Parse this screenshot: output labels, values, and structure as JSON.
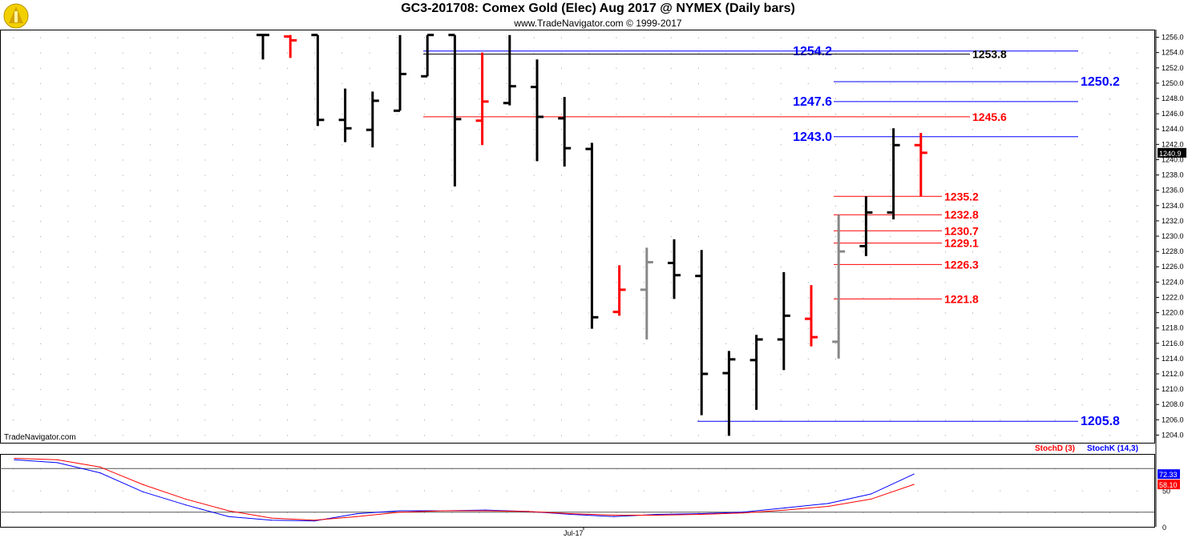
{
  "header": {
    "title": "GC3-201708:  Comex Gold (Elec) Aug 2017 @ NYMEX  (Daily bars)",
    "subtitle": "www.TradeNavigator.com © 1999-2017",
    "watermark": "TradeNavigator.com",
    "logo_icon": "trade-navigator-logo-icon"
  },
  "colors": {
    "bar_default": "#000000",
    "bar_down": "#ff0000",
    "bar_neutral": "#888888",
    "level_blue": "#0000ff",
    "level_red": "#ff0000",
    "stoch_k": "#0000ff",
    "stoch_d": "#ff0000"
  },
  "chart_data": [
    {
      "type": "ohlc",
      "y_ticks": [
        "1204.0",
        "1206.0",
        "1208.0",
        "1210.0",
        "1212.0",
        "1214.0",
        "1216.0",
        "1218.0",
        "1220.0",
        "1222.0",
        "1224.0",
        "1226.0",
        "1228.0",
        "1230.0",
        "1232.0",
        "1234.0",
        "1236.0",
        "1238.0",
        "1240.0",
        "1242.0",
        "1244.0",
        "1246.0",
        "1248.0",
        "1250.0",
        "1252.0",
        "1254.0",
        "1256.0"
      ],
      "ylim": [
        1203.0,
        1257.0
      ],
      "last_price": "1240.9",
      "x_labels": [
        {
          "index": 22,
          "label": "Jul-17"
        }
      ],
      "bars": [
        {
          "o": 1256.3,
          "h": 1256.3,
          "l": 1253.1,
          "c": 1256.3,
          "color": "black"
        },
        {
          "o": 1256.1,
          "h": 1256.3,
          "l": 1253.3,
          "c": 1255.6,
          "color": "red"
        },
        {
          "o": 1256.3,
          "h": 1256.3,
          "l": 1244.4,
          "c": 1245.2,
          "color": "black"
        },
        {
          "o": 1245.2,
          "h": 1249.3,
          "l": 1242.3,
          "c": 1244.1,
          "color": "black"
        },
        {
          "o": 1243.9,
          "h": 1248.9,
          "l": 1241.6,
          "c": 1247.7,
          "color": "black"
        },
        {
          "o": 1246.4,
          "h": 1256.3,
          "l": 1246.4,
          "c": 1251.2,
          "color": "black"
        },
        {
          "o": 1250.9,
          "h": 1256.3,
          "l": 1250.9,
          "c": 1256.3,
          "color": "black"
        },
        {
          "o": 1256.3,
          "h": 1256.3,
          "l": 1236.5,
          "c": 1245.3,
          "color": "black"
        },
        {
          "o": 1245.1,
          "h": 1254.0,
          "l": 1241.9,
          "c": 1247.6,
          "color": "red"
        },
        {
          "o": 1247.4,
          "h": 1256.3,
          "l": 1247.1,
          "c": 1249.6,
          "color": "black"
        },
        {
          "o": 1249.5,
          "h": 1253.1,
          "l": 1239.8,
          "c": 1245.6,
          "color": "black"
        },
        {
          "o": 1245.4,
          "h": 1248.2,
          "l": 1239.1,
          "c": 1241.5,
          "color": "black"
        },
        {
          "o": 1241.4,
          "h": 1242.2,
          "l": 1217.9,
          "c": 1219.4,
          "color": "black"
        },
        {
          "o": 1220.1,
          "h": 1226.2,
          "l": 1219.6,
          "c": 1223.0,
          "color": "red"
        },
        {
          "o": 1223.0,
          "h": 1228.5,
          "l": 1216.5,
          "c": 1226.6,
          "color": "gray"
        },
        {
          "o": 1226.5,
          "h": 1229.6,
          "l": 1221.8,
          "c": 1224.9,
          "color": "black"
        },
        {
          "o": 1224.8,
          "h": 1228.2,
          "l": 1206.6,
          "c": 1212.0,
          "color": "black"
        },
        {
          "o": 1212.1,
          "h": 1215.0,
          "l": 1203.9,
          "c": 1213.9,
          "color": "black"
        },
        {
          "o": 1213.8,
          "h": 1217.1,
          "l": 1207.3,
          "c": 1216.5,
          "color": "black"
        },
        {
          "o": 1216.5,
          "h": 1225.3,
          "l": 1212.5,
          "c": 1219.6,
          "color": "black"
        },
        {
          "o": 1219.2,
          "h": 1223.6,
          "l": 1215.6,
          "c": 1216.8,
          "color": "red"
        },
        {
          "o": 1216.2,
          "h": 1232.8,
          "l": 1214.0,
          "c": 1228.0,
          "color": "gray"
        },
        {
          "o": 1228.7,
          "h": 1235.2,
          "l": 1227.4,
          "c": 1233.1,
          "color": "black"
        },
        {
          "o": 1233.1,
          "h": 1244.1,
          "l": 1232.2,
          "c": 1241.9,
          "color": "black"
        },
        {
          "o": 1241.9,
          "h": 1243.5,
          "l": 1235.2,
          "c": 1240.9,
          "color": "red"
        }
      ],
      "levels": [
        {
          "value": "1254.2",
          "color": "blue",
          "side": "left"
        },
        {
          "value": "1253.8",
          "color": "black",
          "side": "right"
        },
        {
          "value": "1250.2",
          "color": "blue",
          "side": "right"
        },
        {
          "value": "1247.6",
          "color": "blue",
          "side": "left"
        },
        {
          "value": "1245.6",
          "color": "red",
          "side": "right"
        },
        {
          "value": "1243.0",
          "color": "blue",
          "side": "left"
        },
        {
          "value": "1235.2",
          "color": "red",
          "side": "right"
        },
        {
          "value": "1232.8",
          "color": "red",
          "side": "right"
        },
        {
          "value": "1230.7",
          "color": "red",
          "side": "right"
        },
        {
          "value": "1229.1",
          "color": "red",
          "side": "right"
        },
        {
          "value": "1226.3",
          "color": "red",
          "side": "right"
        },
        {
          "value": "1221.8",
          "color": "red",
          "side": "right"
        },
        {
          "value": "1205.8",
          "color": "blue",
          "side": "right"
        }
      ]
    },
    {
      "type": "line",
      "y_ticks": [
        "50",
        "0"
      ],
      "ylim": [
        0,
        100
      ],
      "last_values": {
        "stoch_k": "72.33",
        "stoch_d": "58.10"
      },
      "series": [
        {
          "name": "StochK (14,3)",
          "color": "blue",
          "values": [
            92,
            88,
            74,
            48,
            30,
            14,
            9,
            8,
            18,
            22,
            22,
            23,
            21,
            17,
            14,
            17,
            18,
            20,
            26,
            32,
            45,
            72.33
          ]
        },
        {
          "name": "StochD (3)",
          "color": "red",
          "values": [
            94,
            92,
            82,
            58,
            38,
            22,
            12,
            9,
            14,
            20,
            22,
            22,
            21,
            18,
            16,
            16,
            17,
            19,
            23,
            28,
            38,
            58.1
          ]
        }
      ]
    }
  ]
}
